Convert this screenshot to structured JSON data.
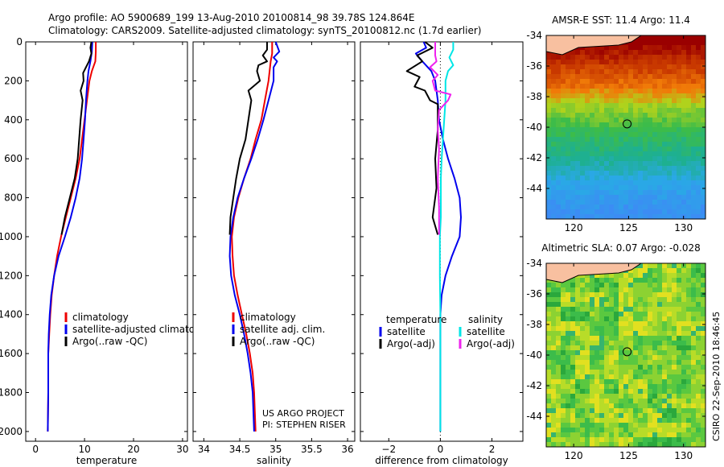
{
  "header": {
    "line1": "Argo profile: AO 5900689_199 13-Aug-2010 20100814_98 39.78S 124.864E",
    "line2": "Climatology: CARS2009. Satellite-adjusted climatology: synTS_20100812.nc (1.7d earlier)"
  },
  "footer_credit": "CSIRO 22-Sep-2010 18:46:45",
  "colors": {
    "red": "#ee0000",
    "blue": "#0000ee",
    "black": "#000000",
    "cyan": "#00e6e6",
    "magenta": "#ee22ee"
  },
  "chart_data": [
    {
      "id": "temperature",
      "type": "line",
      "xlabel": "temperature",
      "xlim": [
        -2,
        31
      ],
      "xticks": [
        0,
        10,
        20,
        30
      ],
      "ylim": [
        0,
        2050
      ],
      "yticks": [
        0,
        200,
        400,
        600,
        800,
        1000,
        1200,
        1400,
        1600,
        1800,
        2000
      ],
      "y_reversed": true,
      "legend": {
        "placement": "lower-middle",
        "entries": [
          "climatology",
          "satellite-adjusted climatolog",
          "Argo(..raw -QC)"
        ]
      },
      "series": [
        {
          "name": "climatology",
          "color": "red",
          "points": [
            [
              12.3,
              0
            ],
            [
              12.3,
              50
            ],
            [
              12.2,
              100
            ],
            [
              11.5,
              150
            ],
            [
              11.0,
              200
            ],
            [
              10.5,
              300
            ],
            [
              10.0,
              400
            ],
            [
              9.5,
              500
            ],
            [
              9.0,
              600
            ],
            [
              8.2,
              700
            ],
            [
              7.2,
              800
            ],
            [
              6.2,
              900
            ],
            [
              5.2,
              1000
            ],
            [
              4.4,
              1100
            ],
            [
              3.8,
              1200
            ],
            [
              3.3,
              1300
            ],
            [
              3.0,
              1400
            ],
            [
              2.8,
              1500
            ],
            [
              2.6,
              1600
            ],
            [
              2.6,
              1800
            ],
            [
              2.5,
              2000
            ]
          ]
        },
        {
          "name": "satellite-adjusted climatology",
          "color": "blue",
          "points": [
            [
              11.6,
              0
            ],
            [
              11.5,
              50
            ],
            [
              11.2,
              100
            ],
            [
              10.8,
              150
            ],
            [
              10.6,
              200
            ],
            [
              10.3,
              300
            ],
            [
              10.1,
              400
            ],
            [
              9.8,
              500
            ],
            [
              9.5,
              600
            ],
            [
              9.0,
              700
            ],
            [
              8.2,
              800
            ],
            [
              7.2,
              900
            ],
            [
              6.0,
              1000
            ],
            [
              4.7,
              1100
            ],
            [
              3.8,
              1200
            ],
            [
              3.2,
              1300
            ],
            [
              2.9,
              1400
            ],
            [
              2.7,
              1500
            ],
            [
              2.6,
              1600
            ],
            [
              2.6,
              1800
            ],
            [
              2.5,
              2000
            ]
          ]
        },
        {
          "name": "Argo(..raw -QC)",
          "color": "black",
          "points": [
            [
              11.4,
              0
            ],
            [
              11.2,
              30
            ],
            [
              11.4,
              60
            ],
            [
              10.9,
              100
            ],
            [
              10.3,
              130
            ],
            [
              9.7,
              160
            ],
            [
              9.8,
              200
            ],
            [
              9.2,
              250
            ],
            [
              9.6,
              300
            ],
            [
              9.2,
              400
            ],
            [
              8.9,
              500
            ],
            [
              8.6,
              600
            ],
            [
              8.0,
              700
            ],
            [
              7.0,
              800
            ],
            [
              6.0,
              900
            ],
            [
              5.3,
              990
            ]
          ]
        }
      ]
    },
    {
      "id": "salinity",
      "type": "line",
      "xlabel": "salinity",
      "xlim": [
        33.85,
        36.1
      ],
      "xticks": [
        34,
        34.5,
        35,
        35.5,
        36
      ],
      "ylim": [
        0,
        2050
      ],
      "y_reversed": true,
      "legend": {
        "placement": "lower-middle",
        "entries": [
          "climatology",
          "satellite adj. clim.",
          "Argo(..raw -QC)"
        ]
      },
      "annotation": [
        "US ARGO PROJECT",
        "PI: STEPHEN RISER"
      ],
      "series": [
        {
          "name": "climatology",
          "color": "red",
          "points": [
            [
              34.95,
              0
            ],
            [
              34.95,
              60
            ],
            [
              34.93,
              100
            ],
            [
              34.9,
              200
            ],
            [
              34.85,
              300
            ],
            [
              34.8,
              400
            ],
            [
              34.72,
              500
            ],
            [
              34.65,
              600
            ],
            [
              34.56,
              700
            ],
            [
              34.48,
              800
            ],
            [
              34.42,
              900
            ],
            [
              34.39,
              1000
            ],
            [
              34.4,
              1100
            ],
            [
              34.42,
              1200
            ],
            [
              34.47,
              1300
            ],
            [
              34.53,
              1400
            ],
            [
              34.59,
              1500
            ],
            [
              34.64,
              1600
            ],
            [
              34.68,
              1700
            ],
            [
              34.7,
              1800
            ],
            [
              34.71,
              1900
            ],
            [
              34.72,
              2000
            ]
          ]
        },
        {
          "name": "satellite adj. clim.",
          "color": "blue",
          "points": [
            [
              35.0,
              0
            ],
            [
              35.05,
              50
            ],
            [
              34.97,
              80
            ],
            [
              35.02,
              100
            ],
            [
              34.97,
              130
            ],
            [
              34.97,
              200
            ],
            [
              34.9,
              300
            ],
            [
              34.83,
              400
            ],
            [
              34.75,
              500
            ],
            [
              34.66,
              600
            ],
            [
              34.56,
              700
            ],
            [
              34.47,
              800
            ],
            [
              34.41,
              900
            ],
            [
              34.37,
              1000
            ],
            [
              34.36,
              1100
            ],
            [
              34.38,
              1200
            ],
            [
              34.43,
              1300
            ],
            [
              34.5,
              1400
            ],
            [
              34.56,
              1500
            ],
            [
              34.61,
              1600
            ],
            [
              34.65,
              1700
            ],
            [
              34.68,
              1800
            ],
            [
              34.69,
              1900
            ],
            [
              34.7,
              2000
            ]
          ]
        },
        {
          "name": "Argo(..raw -QC)",
          "color": "black",
          "points": [
            [
              34.88,
              0
            ],
            [
              34.88,
              40
            ],
            [
              34.82,
              70
            ],
            [
              34.88,
              100
            ],
            [
              34.76,
              120
            ],
            [
              34.74,
              150
            ],
            [
              34.78,
              200
            ],
            [
              34.62,
              250
            ],
            [
              34.66,
              300
            ],
            [
              34.62,
              400
            ],
            [
              34.58,
              500
            ],
            [
              34.5,
              600
            ],
            [
              34.45,
              700
            ],
            [
              34.41,
              800
            ],
            [
              34.37,
              900
            ],
            [
              34.36,
              990
            ]
          ]
        }
      ]
    },
    {
      "id": "difference",
      "type": "line",
      "xlabel": "difference from climatology",
      "xlim": [
        -3.1,
        3.2
      ],
      "xticks": [
        -2,
        0,
        2
      ],
      "xtick_labels": [
        "−2",
        "0",
        "2"
      ],
      "ylim": [
        0,
        2050
      ],
      "y_reversed": true,
      "zero_line": true,
      "legend": {
        "placement": "lower-middle",
        "left_title": "temperature",
        "right_title": "salinity",
        "left_entries": [
          "satellite",
          "Argo(-adj)"
        ],
        "right_entries": [
          "satellite",
          "Argo(-adj)"
        ]
      },
      "series": [
        {
          "name": "temperature satellite",
          "color": "blue",
          "points": [
            [
              -0.65,
              0
            ],
            [
              -0.55,
              30
            ],
            [
              -0.95,
              60
            ],
            [
              -0.7,
              100
            ],
            [
              -0.35,
              150
            ],
            [
              -0.2,
              200
            ],
            [
              -0.1,
              300
            ],
            [
              -0.05,
              400
            ],
            [
              0.1,
              500
            ],
            [
              0.3,
              600
            ],
            [
              0.55,
              700
            ],
            [
              0.75,
              800
            ],
            [
              0.8,
              900
            ],
            [
              0.75,
              1000
            ],
            [
              0.45,
              1100
            ],
            [
              0.2,
              1200
            ],
            [
              0.05,
              1300
            ],
            [
              0,
              1400
            ],
            [
              0,
              2000
            ]
          ]
        },
        {
          "name": "temperature Argo(-adj)",
          "color": "black",
          "points": [
            [
              -0.6,
              0
            ],
            [
              -0.3,
              30
            ],
            [
              -0.9,
              70
            ],
            [
              -0.7,
              100
            ],
            [
              -1.3,
              150
            ],
            [
              -0.8,
              180
            ],
            [
              -1.0,
              230
            ],
            [
              -0.6,
              250
            ],
            [
              -0.4,
              300
            ],
            [
              -0.1,
              320
            ],
            [
              -0.1,
              450
            ],
            [
              -0.2,
              600
            ],
            [
              -0.15,
              750
            ],
            [
              -0.3,
              900
            ],
            [
              -0.1,
              990
            ]
          ]
        },
        {
          "name": "salinity satellite",
          "color": "cyan",
          "points": [
            [
              0.5,
              0
            ],
            [
              0.5,
              40
            ],
            [
              0.35,
              80
            ],
            [
              0.5,
              120
            ],
            [
              0.3,
              150
            ],
            [
              0.2,
              200
            ],
            [
              0.2,
              300
            ],
            [
              0.15,
              400
            ],
            [
              0.1,
              500
            ],
            [
              0.05,
              600
            ],
            [
              0.02,
              700
            ],
            [
              0.02,
              900
            ],
            [
              -0.02,
              1000
            ],
            [
              -0.02,
              1200
            ],
            [
              0,
              1400
            ],
            [
              0,
              2000
            ]
          ]
        },
        {
          "name": "salinity Argo(-adj)",
          "color": "magenta",
          "points": [
            [
              -0.2,
              0
            ],
            [
              -0.2,
              70
            ],
            [
              -0.15,
              100
            ],
            [
              -0.4,
              130
            ],
            [
              -0.1,
              170
            ],
            [
              -0.3,
              200
            ],
            [
              -0.2,
              250
            ],
            [
              0.4,
              270
            ],
            [
              0.3,
              300
            ],
            [
              -0.05,
              350
            ],
            [
              -0.1,
              450
            ],
            [
              -0.05,
              550
            ],
            [
              -0.1,
              700
            ],
            [
              -0.05,
              850
            ],
            [
              -0.05,
              990
            ]
          ]
        }
      ]
    },
    {
      "id": "sst_map",
      "type": "heatmap",
      "title": "AMSR-E SST: 11.4 Argo: 11.4",
      "xlim": [
        117.5,
        132
      ],
      "ylim": [
        -46,
        -34
      ],
      "xticks": [
        120,
        125,
        130
      ],
      "yticks": [
        -34,
        -36,
        -38,
        -40,
        -42,
        -44
      ],
      "marker": [
        124.864,
        -39.78
      ],
      "color_bands": [
        {
          "lat": -34.5,
          "color": "#9a0000"
        },
        {
          "lat": -36,
          "color": "#c83800"
        },
        {
          "lat": -37.5,
          "color": "#f07a08"
        },
        {
          "lat": -38.5,
          "color": "#b0d21c"
        },
        {
          "lat": -40,
          "color": "#3cbc4a"
        },
        {
          "lat": -42,
          "color": "#1eb090"
        },
        {
          "lat": -43.5,
          "color": "#2aa8e6"
        },
        {
          "lat": -46,
          "color": "#3c8cf4"
        }
      ]
    },
    {
      "id": "sla_map",
      "type": "heatmap",
      "title": "Altimetric SLA: 0.07 Argo: -0.028",
      "xlim": [
        117.5,
        132
      ],
      "ylim": [
        -46,
        -34
      ],
      "xticks": [
        120,
        125,
        130
      ],
      "yticks": [
        -34,
        -36,
        -38,
        -40,
        -42,
        -44
      ],
      "marker": [
        124.864,
        -39.78
      ]
    }
  ]
}
